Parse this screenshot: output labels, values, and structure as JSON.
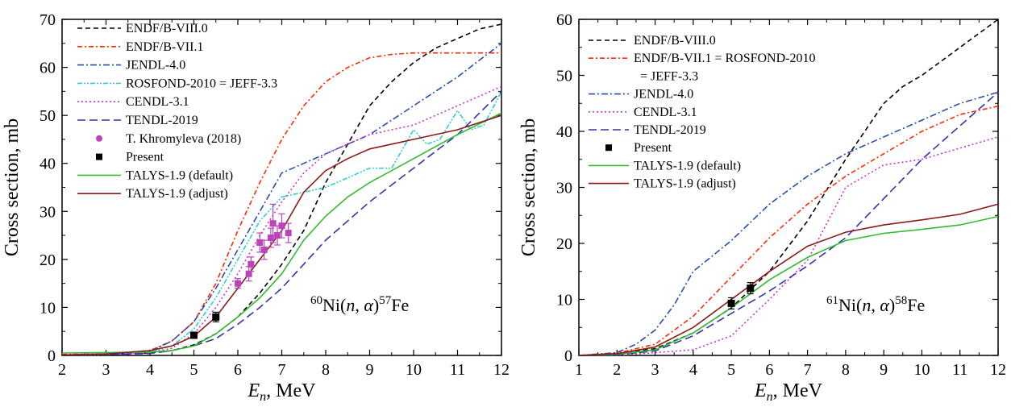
{
  "chart_data": [
    {
      "type": "line",
      "xlabel": "E_n, MeV",
      "ylabel": "Cross section, mb",
      "xlim": [
        2,
        12
      ],
      "ylim": [
        0,
        70
      ],
      "xticks": [
        2,
        3,
        4,
        5,
        6,
        7,
        8,
        9,
        10,
        11,
        12
      ],
      "yticks": [
        0,
        10,
        20,
        30,
        40,
        50,
        60,
        70
      ],
      "legend_position": "top-left",
      "annotation": {
        "mass1": "60",
        "mid": "Ni(",
        "n": "n",
        "comma": ", ",
        "alpha": "α",
        "close": ")",
        "mass2": "57",
        "elem2": "Fe"
      },
      "series": [
        {
          "name": "ENDF/B-VIII.0",
          "color": "#000000",
          "dash": "6,4",
          "x": [
            2,
            3,
            4,
            4.5,
            5,
            5.5,
            6,
            6.5,
            7,
            7.5,
            8,
            8.5,
            9,
            9.5,
            10,
            10.5,
            11,
            11.5,
            12
          ],
          "y": [
            0.1,
            0.2,
            0.5,
            1.0,
            2.2,
            4.5,
            8.0,
            13.0,
            19.0,
            26.0,
            36.0,
            44.0,
            52.0,
            57.0,
            61.0,
            64.0,
            66.0,
            68.0,
            69.0
          ]
        },
        {
          "name": "ENDF/B-VII.1",
          "color": "#ff2a00",
          "dash": "6,3,2,3",
          "x": [
            2,
            3,
            4,
            4.5,
            5,
            5.5,
            6,
            6.5,
            7,
            7.5,
            8,
            8.5,
            9,
            9.5,
            10,
            11,
            12
          ],
          "y": [
            0.2,
            0.3,
            1.0,
            3.0,
            7.0,
            15.0,
            26.0,
            36.0,
            45.0,
            52.0,
            57.0,
            60.0,
            62.0,
            62.7,
            63.0,
            63.0,
            63.0
          ]
        },
        {
          "name": "JENDL-4.0",
          "color": "#2a4ea8",
          "dash": "8,3,2,3",
          "x": [
            2,
            3,
            4,
            4.5,
            5,
            5.5,
            6,
            6.5,
            7,
            7.5,
            8,
            9,
            10,
            11,
            12
          ],
          "y": [
            0.1,
            0.2,
            0.8,
            3.0,
            7.0,
            14.0,
            22.0,
            30.0,
            38.0,
            40.0,
            42.0,
            46.0,
            52.0,
            58.0,
            65.0
          ]
        },
        {
          "name": "ROSFOND-2010 = JEFF-3.3",
          "color": "#33cccc",
          "dash": "6,2,2,2,2,2",
          "x": [
            2,
            3,
            4,
            4.5,
            5,
            5.5,
            6,
            6.5,
            7,
            7.5,
            8,
            8.5,
            9,
            9.5,
            10,
            10.3,
            10.6,
            11,
            11.3,
            11.6,
            12
          ],
          "y": [
            0.1,
            0.2,
            0.6,
            2.0,
            5.5,
            12.0,
            20.0,
            28.0,
            33.0,
            34.0,
            35.0,
            37.0,
            39.0,
            39.0,
            47.0,
            44.0,
            45.0,
            51.0,
            47.0,
            48.0,
            55.0
          ]
        },
        {
          "name": "CENDL-3.1",
          "color": "#cc33cc",
          "dash": "2,3",
          "x": [
            2,
            3,
            4,
            4.5,
            5,
            5.5,
            6,
            6.5,
            7,
            7.5,
            8,
            8.5,
            9,
            10,
            11,
            12
          ],
          "y": [
            0.1,
            0.2,
            0.5,
            1.5,
            4.5,
            10.0,
            17.0,
            25.0,
            32.0,
            38.0,
            42.0,
            44.0,
            46.0,
            48.0,
            52.0,
            56.0
          ]
        },
        {
          "name": "TENDL-2019",
          "color": "#3333aa",
          "dash": "10,5",
          "x": [
            2,
            3,
            4,
            4.5,
            5,
            5.5,
            6,
            6.5,
            7,
            7.5,
            8,
            9,
            10,
            11,
            12
          ],
          "y": [
            0.1,
            0.2,
            0.4,
            1.0,
            2.0,
            3.5,
            6.5,
            10.0,
            14.0,
            19.0,
            24.0,
            32.0,
            39.0,
            46.0,
            55.0
          ]
        },
        {
          "name": "TALYS-1.9 (default)",
          "color": "#33bb33",
          "dash": "",
          "x": [
            2,
            3,
            4,
            4.5,
            5,
            5.5,
            6,
            6.5,
            7,
            7.5,
            8,
            8.5,
            9,
            10,
            11,
            12
          ],
          "y": [
            0.5,
            0.6,
            0.7,
            1.0,
            2.0,
            4.5,
            8.0,
            12.0,
            17.0,
            24.0,
            29.0,
            33.0,
            36.0,
            41.0,
            46.0,
            50.5
          ]
        },
        {
          "name": "TALYS-1.9 (adjust)",
          "color": "#8b1a1a",
          "dash": "",
          "x": [
            2,
            3,
            4,
            4.5,
            5,
            5.5,
            6,
            6.5,
            7,
            7.5,
            8,
            8.5,
            9,
            10,
            11,
            12
          ],
          "y": [
            0.1,
            0.3,
            1.0,
            2.0,
            4.0,
            8.0,
            14.0,
            20.0,
            26.0,
            34.0,
            38.5,
            41.0,
            43.0,
            45.0,
            47.0,
            50.0
          ]
        }
      ],
      "points": [
        {
          "name": "T. Khromyleva (2018)",
          "color": "#bb44bb",
          "x": [
            6.0,
            6.25,
            6.3,
            6.5,
            6.6,
            6.75,
            6.8,
            6.9,
            7.0,
            7.15
          ],
          "y": [
            15.0,
            17.0,
            19.0,
            23.5,
            22.0,
            24.5,
            27.5,
            25.0,
            27.0,
            25.5
          ],
          "err": [
            1.0,
            1.5,
            1.5,
            2.0,
            2.0,
            2.0,
            4.0,
            2.0,
            2.5,
            2.0
          ]
        },
        {
          "name": "Present",
          "color": "#000000",
          "x": [
            5.0,
            5.5
          ],
          "y": [
            4.2,
            8.0
          ],
          "err": [
            0.5,
            1.0
          ]
        }
      ]
    },
    {
      "type": "line",
      "xlabel": "E_n, MeV",
      "ylabel": "Cross section, mb",
      "xlim": [
        1,
        12
      ],
      "ylim": [
        0,
        60
      ],
      "xticks": [
        1,
        2,
        3,
        4,
        5,
        6,
        7,
        8,
        9,
        10,
        11,
        12
      ],
      "yticks": [
        0,
        10,
        20,
        30,
        40,
        50,
        60
      ],
      "legend_position": "top-left",
      "annotation": {
        "mass1": "61",
        "mid": "Ni(",
        "n": "n",
        "comma": ", ",
        "alpha": "α",
        "close": ")",
        "mass2": "58",
        "elem2": "Fe"
      },
      "series": [
        {
          "name": "ENDF/B-VIII.0",
          "color": "#000000",
          "dash": "6,4",
          "x": [
            1,
            2,
            3,
            4,
            5,
            6,
            7,
            8,
            9,
            9.5,
            10,
            11,
            12
          ],
          "y": [
            0,
            0.3,
            1.2,
            4.0,
            8.5,
            15.0,
            24.0,
            35.0,
            45.0,
            48.0,
            50.0,
            55.0,
            60.0
          ]
        },
        {
          "name": "ENDF/B-VII.1 = ROSFOND-2010",
          "name2": "= JEFF-3.3",
          "color": "#ff2a00",
          "dash": "6,3,2,3",
          "x": [
            1,
            2,
            3,
            4,
            5,
            6,
            7,
            8,
            9,
            10,
            11,
            12
          ],
          "y": [
            0,
            0.4,
            2.0,
            7.0,
            14.0,
            21.0,
            27.0,
            32.0,
            36.0,
            40.0,
            43.0,
            44.5
          ]
        },
        {
          "name": "JENDL-4.0",
          "color": "#2a4ea8",
          "dash": "8,3,2,3",
          "x": [
            1,
            2,
            2.5,
            3,
            3.5,
            4,
            5,
            6,
            7,
            8,
            9,
            10,
            11,
            12
          ],
          "y": [
            0,
            0.5,
            2.0,
            4.5,
            9.0,
            15.0,
            20.5,
            27.0,
            32.0,
            36.0,
            39.0,
            42.0,
            45.0,
            47.0
          ]
        },
        {
          "name": "CENDL-3.1",
          "color": "#cc33cc",
          "dash": "2,3",
          "x": [
            1,
            2,
            3,
            4,
            5,
            6,
            7,
            8,
            9,
            10,
            11,
            12
          ],
          "y": [
            0,
            0,
            0.5,
            1.0,
            3.5,
            10.0,
            17.0,
            30.0,
            34.0,
            35.0,
            37.0,
            39.0
          ]
        },
        {
          "name": "TENDL-2019",
          "color": "#3333aa",
          "dash": "10,5",
          "x": [
            1,
            2,
            3,
            4,
            5,
            6,
            7,
            8,
            9,
            10,
            11,
            12
          ],
          "y": [
            0,
            0.1,
            0.8,
            3.5,
            7.5,
            11.5,
            16.0,
            21.0,
            28.0,
            35.0,
            41.0,
            47.0
          ]
        },
        {
          "name": "TALYS-1.9 (default)",
          "color": "#33bb33",
          "dash": "",
          "x": [
            1,
            2,
            3,
            4,
            5,
            6,
            7,
            8,
            9,
            10,
            11,
            12
          ],
          "y": [
            0,
            0.2,
            1.0,
            4.0,
            8.5,
            13.5,
            17.5,
            20.5,
            21.8,
            22.5,
            23.3,
            24.8
          ]
        },
        {
          "name": "TALYS-1.9 (adjust)",
          "color": "#8b1a1a",
          "dash": "",
          "x": [
            1,
            2,
            3,
            4,
            5,
            6,
            7,
            8,
            9,
            10,
            11,
            12
          ],
          "y": [
            0,
            0.3,
            1.5,
            5.0,
            10.0,
            15.0,
            19.5,
            22.0,
            23.3,
            24.2,
            25.2,
            27.0
          ]
        }
      ],
      "points": [
        {
          "name": "Present",
          "color": "#000000",
          "x": [
            5.0,
            5.5
          ],
          "y": [
            9.3,
            12.0
          ],
          "err": [
            1.0,
            1.0
          ]
        }
      ]
    }
  ]
}
